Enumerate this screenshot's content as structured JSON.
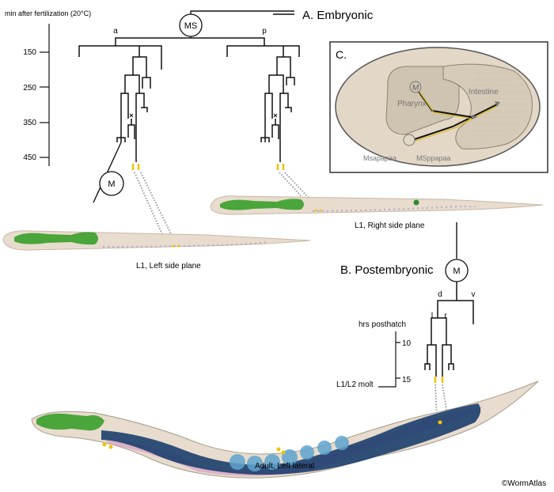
{
  "embryonic": {
    "title": "A. Embryonic",
    "axis_label": "min after fertilization (20°C)",
    "ticks": [
      "150",
      "250",
      "350",
      "450"
    ],
    "root": "MS",
    "branch_a": "a",
    "branch_p": "p",
    "cell_m": "M"
  },
  "worms": {
    "l1_left": "L1, Left side plane",
    "l1_right": "L1, Right side plane",
    "adult": "Adult, Left lateral"
  },
  "inset": {
    "label": "C.",
    "pharynx": "Pharynx",
    "intestine": "Intestine",
    "cell_m": "M",
    "cell_left": "Msapapaa",
    "cell_right": "MSppapaa"
  },
  "postembryonic": {
    "title": "B. Postembryonic",
    "root": "M",
    "branch_d": "d",
    "branch_v": "v",
    "branch_l": "l",
    "branch_r": "r",
    "axis_label": "hrs posthatch",
    "ticks": [
      "10",
      "15"
    ],
    "molt_label": "L1/L2 molt"
  },
  "credit": "©WormAtlas",
  "colors": {
    "lineage": "#111111",
    "highlight": "#f2c200",
    "worm_body": "#e7dccd",
    "pharynx_green": "#4aa53a",
    "intestine_dark": "#1c3f6e",
    "gonad_pink": "#d9a9c4",
    "inset_bg": "#e3d8c7"
  }
}
